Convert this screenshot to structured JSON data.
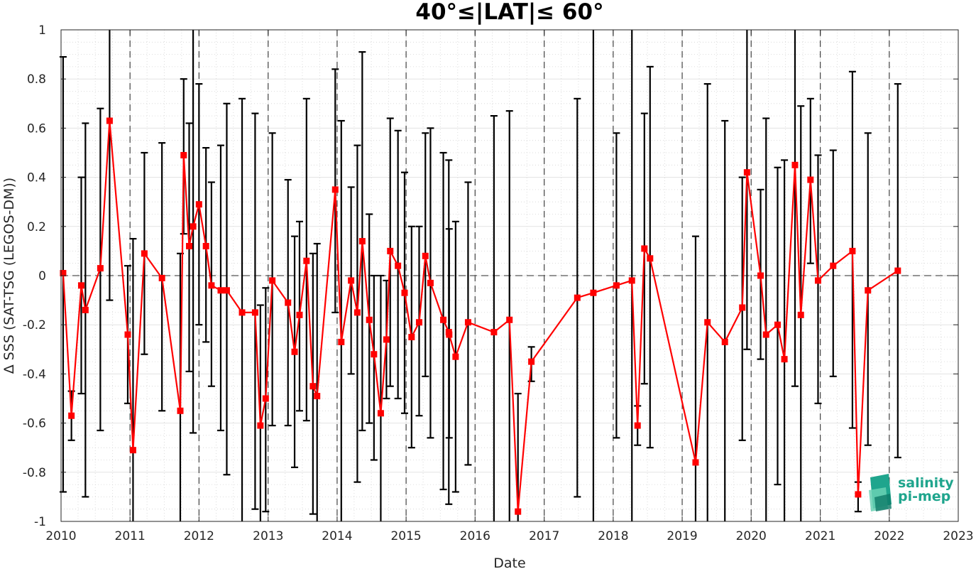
{
  "chart_data": {
    "type": "line",
    "title": "40°≤|LAT|≤ 60°",
    "xlabel": "Date",
    "ylabel": "Δ SSS (SAT-TSG (LEGOS-DM))",
    "xlim": [
      "2010-01-01",
      "2023-01-01"
    ],
    "ylim": [
      -1,
      1
    ],
    "x_ticks": [
      "2010",
      "2011",
      "2012",
      "2013",
      "2014",
      "2015",
      "2016",
      "2017",
      "2018",
      "2019",
      "2020",
      "2021",
      "2022",
      "2023"
    ],
    "y_ticks": [
      "-1",
      "-0.8",
      "-0.6",
      "-0.4",
      "-0.2",
      "0",
      "0.2",
      "0.4",
      "0.6",
      "0.8",
      "1"
    ],
    "y_tick_values": [
      -1,
      -0.8,
      -0.6,
      -0.4,
      -0.2,
      0,
      0.2,
      0.4,
      0.6,
      0.8,
      1
    ],
    "grid": true,
    "zero_line": "dashed",
    "year_boundaries": "dashed",
    "series": [
      {
        "color": "#ff0000",
        "marker": "square",
        "errorbar_color": "#000000",
        "x": [
          "2010-01-12",
          "2010-02-25",
          "2010-04-18",
          "2010-05-10",
          "2010-07-28",
          "2010-09-15",
          "2010-12-20",
          "2011-01-17",
          "2011-03-18",
          "2011-06-19",
          "2011-09-24",
          "2011-10-12",
          "2011-11-10",
          "2011-12-01",
          "2012-01-01",
          "2012-02-07",
          "2012-03-07",
          "2012-04-25",
          "2012-05-27",
          "2012-08-16",
          "2012-10-24",
          "2012-11-21",
          "2012-12-19",
          "2013-01-23",
          "2013-04-16",
          "2013-05-21",
          "2013-06-16",
          "2013-07-23",
          "2013-08-26",
          "2013-09-17",
          "2013-12-22",
          "2014-01-23",
          "2014-03-16",
          "2014-04-18",
          "2014-05-14",
          "2014-06-20",
          "2014-07-15",
          "2014-08-20",
          "2014-09-19",
          "2014-10-09",
          "2014-11-19",
          "2014-12-24",
          "2015-01-30",
          "2015-03-11",
          "2015-04-13",
          "2015-05-10",
          "2015-07-17",
          "2015-08-15",
          "2015-08-17",
          "2015-09-20",
          "2015-11-25",
          "2016-04-10",
          "2016-07-01",
          "2016-08-15",
          "2016-10-25",
          "2017-06-25",
          "2017-09-18",
          "2018-01-18",
          "2018-04-10",
          "2018-05-10",
          "2018-06-15",
          "2018-07-15",
          "2019-03-13",
          "2019-05-15",
          "2019-08-15",
          "2019-11-15",
          "2019-12-10",
          "2020-02-20",
          "2020-03-20",
          "2020-05-20",
          "2020-06-25",
          "2020-08-20",
          "2020-09-20",
          "2020-11-10",
          "2020-12-20",
          "2021-03-10",
          "2021-06-20",
          "2021-07-20",
          "2021-09-10",
          "2022-02-15"
        ],
        "y": [
          0.01,
          -0.57,
          -0.04,
          -0.14,
          0.03,
          0.63,
          -0.24,
          -0.71,
          0.09,
          -0.01,
          -0.55,
          0.49,
          0.12,
          0.2,
          0.29,
          0.12,
          -0.04,
          -0.06,
          -0.06,
          -0.15,
          -0.15,
          -0.61,
          -0.5,
          -0.02,
          -0.11,
          -0.31,
          -0.16,
          0.06,
          -0.45,
          -0.49,
          0.35,
          -0.27,
          -0.02,
          -0.15,
          0.14,
          -0.18,
          -0.32,
          -0.56,
          -0.26,
          0.1,
          0.04,
          -0.07,
          -0.25,
          -0.19,
          0.08,
          -0.03,
          -0.18,
          -0.23,
          -0.24,
          -0.33,
          -0.19,
          -0.23,
          -0.18,
          -0.96,
          -0.35,
          -0.09,
          -0.07,
          -0.04,
          -0.02,
          -0.61,
          0.11,
          0.07,
          -0.76,
          -0.19,
          -0.27,
          -0.13,
          0.42,
          0.0,
          -0.24,
          -0.2,
          -0.34,
          0.45,
          -0.16,
          0.39,
          -0.02,
          0.04,
          0.1,
          -0.89,
          -0.06,
          0.02
        ],
        "err_low": [
          -0.88,
          -0.67,
          -0.48,
          -0.9,
          -0.63,
          -0.1,
          -0.52,
          -1.0,
          -0.32,
          -0.55,
          -1.0,
          0.17,
          -0.39,
          -0.64,
          -0.2,
          -0.27,
          -0.45,
          -0.63,
          -0.81,
          -1.0,
          -0.95,
          -1.0,
          -0.96,
          -0.61,
          -0.61,
          -0.78,
          -0.55,
          -0.59,
          -0.97,
          -1.0,
          -0.15,
          -1.0,
          -0.4,
          -0.84,
          -0.63,
          -0.6,
          -0.75,
          -1.0,
          -0.5,
          -0.45,
          -0.5,
          -0.56,
          -0.7,
          -0.57,
          -0.41,
          -0.66,
          -0.87,
          -0.93,
          -0.66,
          -0.88,
          -0.77,
          -1.0,
          -1.0,
          -1.0,
          -0.43,
          -0.9,
          -1.0,
          -0.66,
          -1.0,
          -0.69,
          -0.44,
          -0.7,
          -1.0,
          -1.0,
          -1.0,
          -0.67,
          -0.3,
          -0.34,
          -1.0,
          -0.85,
          -1.0,
          -0.45,
          -1.0,
          0.05,
          -0.52,
          -0.41,
          -0.62,
          -0.96,
          -0.69,
          -0.74
        ],
        "err_high": [
          0.89,
          -0.47,
          0.4,
          0.62,
          0.68,
          1.0,
          0.04,
          0.15,
          0.5,
          0.54,
          0.09,
          0.8,
          0.62,
          1.0,
          0.78,
          0.52,
          0.38,
          0.53,
          0.7,
          0.72,
          0.66,
          -0.12,
          -0.05,
          0.58,
          0.39,
          0.16,
          0.22,
          0.72,
          0.09,
          0.13,
          0.84,
          0.63,
          0.36,
          0.53,
          0.91,
          0.25,
          0.0,
          0.0,
          -0.02,
          0.64,
          0.59,
          0.42,
          0.2,
          0.2,
          0.58,
          0.6,
          0.5,
          0.47,
          0.19,
          0.22,
          0.38,
          0.65,
          0.67,
          -0.48,
          -0.29,
          0.72,
          1.0,
          0.58,
          1.0,
          -0.53,
          0.66,
          0.85,
          0.16,
          0.78,
          0.63,
          0.4,
          1.0,
          0.35,
          0.64,
          0.44,
          0.47,
          1.0,
          0.69,
          0.72,
          0.49,
          0.51,
          0.83,
          -0.84,
          0.58,
          0.78
        ]
      }
    ]
  },
  "logo": {
    "line1": "salinity",
    "line2": "pi-mep",
    "color": "#1fa58d"
  }
}
